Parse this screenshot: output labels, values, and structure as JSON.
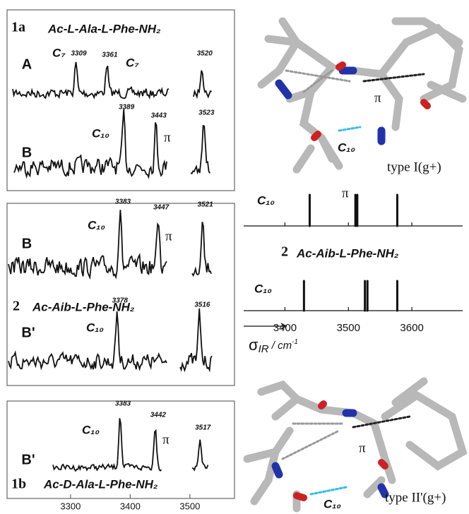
{
  "panels": [
    {
      "id": "1a",
      "molecule": "Ac-L-Ala-L-Phe-NH₂",
      "traces": [
        {
          "label": "A",
          "peaks": [
            3309,
            3361,
            3520
          ],
          "annotations": [
            "C₇",
            "C₇"
          ]
        },
        {
          "label": "B",
          "peaks": [
            3389,
            3443,
            3523
          ],
          "annotations": [
            "C₁₀",
            "π"
          ]
        }
      ]
    },
    {
      "id": "2",
      "molecule": "Ac-Aib-L-Phe-NH₂",
      "traces": [
        {
          "label": "B",
          "peaks": [
            3383,
            3447,
            3521
          ],
          "annotations": [
            "C₁₀",
            "π"
          ]
        },
        {
          "label": "B'",
          "peaks": [
            3378,
            3516
          ],
          "annotations": [
            "C₁₀"
          ]
        }
      ]
    },
    {
      "id": "1b",
      "molecule": "Ac-D-Ala-L-Phe-NH₂",
      "traces": [
        {
          "label": "B'",
          "peaks": [
            3383,
            3442,
            3517
          ],
          "annotations": [
            "C₁₀",
            "π"
          ]
        }
      ]
    }
  ],
  "spectrum_axis": {
    "xticks": [
      3300,
      3400,
      3500
    ]
  },
  "structures": [
    {
      "label": "type I(g+)",
      "hbond": "C₁₀",
      "pi": "π"
    },
    {
      "label": "type II'(g+)",
      "hbond": "C₁₀",
      "pi": "π"
    }
  ],
  "chart_data": [
    {
      "type": "stick",
      "x": [
        3439,
        3511,
        3514,
        3577
      ],
      "color": "#111111",
      "xlim": [
        3335,
        3680
      ],
      "xticks": [
        3400,
        3500,
        3600
      ],
      "tick_labels": false,
      "annotations": [
        "C₁₀",
        "π"
      ]
    },
    {
      "type": "stick",
      "title": "2",
      "subtitle": "Ac-Aib-L-Phe-NH₂",
      "x": [
        3430,
        3526,
        3530,
        3577
      ],
      "color": "#111111",
      "xlim": [
        3335,
        3680
      ],
      "xticks": [
        3400,
        3500,
        3600
      ],
      "tick_labels": true,
      "annotations": [
        "C₁₀"
      ],
      "xlabel": {
        "symbol": "σ",
        "subscript": "IR",
        "unit": " / cm",
        "exponent": "-1"
      }
    }
  ]
}
